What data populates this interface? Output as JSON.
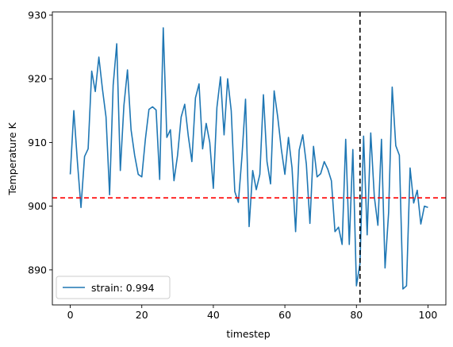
{
  "chart_data": {
    "type": "line",
    "title": "",
    "xlabel": "timestep",
    "ylabel": "Temperature K",
    "xlim": [
      -5,
      105
    ],
    "ylim": [
      884.5,
      930.5
    ],
    "xticks": [
      0,
      20,
      40,
      60,
      80,
      100
    ],
    "yticks": [
      890,
      900,
      910,
      920,
      930
    ],
    "grid": false,
    "legend_position": "lower left",
    "series": [
      {
        "name": "strain: 0.994",
        "color": "#1f77b4",
        "x": [
          0,
          1,
          2,
          3,
          4,
          5,
          6,
          7,
          8,
          9,
          10,
          11,
          12,
          13,
          14,
          15,
          16,
          17,
          18,
          19,
          20,
          21,
          22,
          23,
          24,
          25,
          26,
          27,
          28,
          29,
          30,
          31,
          32,
          33,
          34,
          35,
          36,
          37,
          38,
          39,
          40,
          41,
          42,
          43,
          44,
          45,
          46,
          47,
          48,
          49,
          50,
          51,
          52,
          53,
          54,
          55,
          56,
          57,
          58,
          59,
          60,
          61,
          62,
          63,
          64,
          65,
          66,
          67,
          68,
          69,
          70,
          71,
          72,
          73,
          74,
          75,
          76,
          77,
          78,
          79,
          80,
          81,
          82,
          83,
          84,
          85,
          86,
          87,
          88,
          89,
          90,
          91,
          92,
          93,
          94,
          95,
          96,
          97,
          98,
          99,
          100
        ],
        "y": [
          905.0,
          915.0,
          907.0,
          899.8,
          907.8,
          909.0,
          921.2,
          918.0,
          923.4,
          918.4,
          914.0,
          901.8,
          919.0,
          925.5,
          905.6,
          915.8,
          921.4,
          912.0,
          908.0,
          905.0,
          904.6,
          910.5,
          915.2,
          915.6,
          915.1,
          904.2,
          928.0,
          910.8,
          912.0,
          904.0,
          908.0,
          914.0,
          916.0,
          911.0,
          907.0,
          917.0,
          919.2,
          909.0,
          913.0,
          910.0,
          902.8,
          915.5,
          920.3,
          911.2,
          920.0,
          915.0,
          902.3,
          900.6,
          907.8,
          916.8,
          896.8,
          905.6,
          902.6,
          905.0,
          917.5,
          907.0,
          903.5,
          918.1,
          914.0,
          909.0,
          905.0,
          910.8,
          906.0,
          896.0,
          908.8,
          911.2,
          906.6,
          897.3,
          909.4,
          904.6,
          905.1,
          907.0,
          905.8,
          904.0,
          896.0,
          896.7,
          894.0,
          910.5,
          894.0,
          908.9,
          887.5,
          891.0,
          911.0,
          895.5,
          911.5,
          901.5,
          897.0,
          910.5,
          890.3,
          899.0,
          918.7,
          909.5,
          908.0,
          887.0,
          887.5,
          906.0,
          900.5,
          902.5,
          897.2,
          900.0,
          899.8
        ]
      }
    ],
    "reference_lines": [
      {
        "orientation": "horizontal",
        "value": 901.3,
        "color": "#ff0000",
        "style": "dashed"
      },
      {
        "orientation": "vertical",
        "value": 81,
        "color": "#000000",
        "style": "dashed"
      }
    ]
  }
}
